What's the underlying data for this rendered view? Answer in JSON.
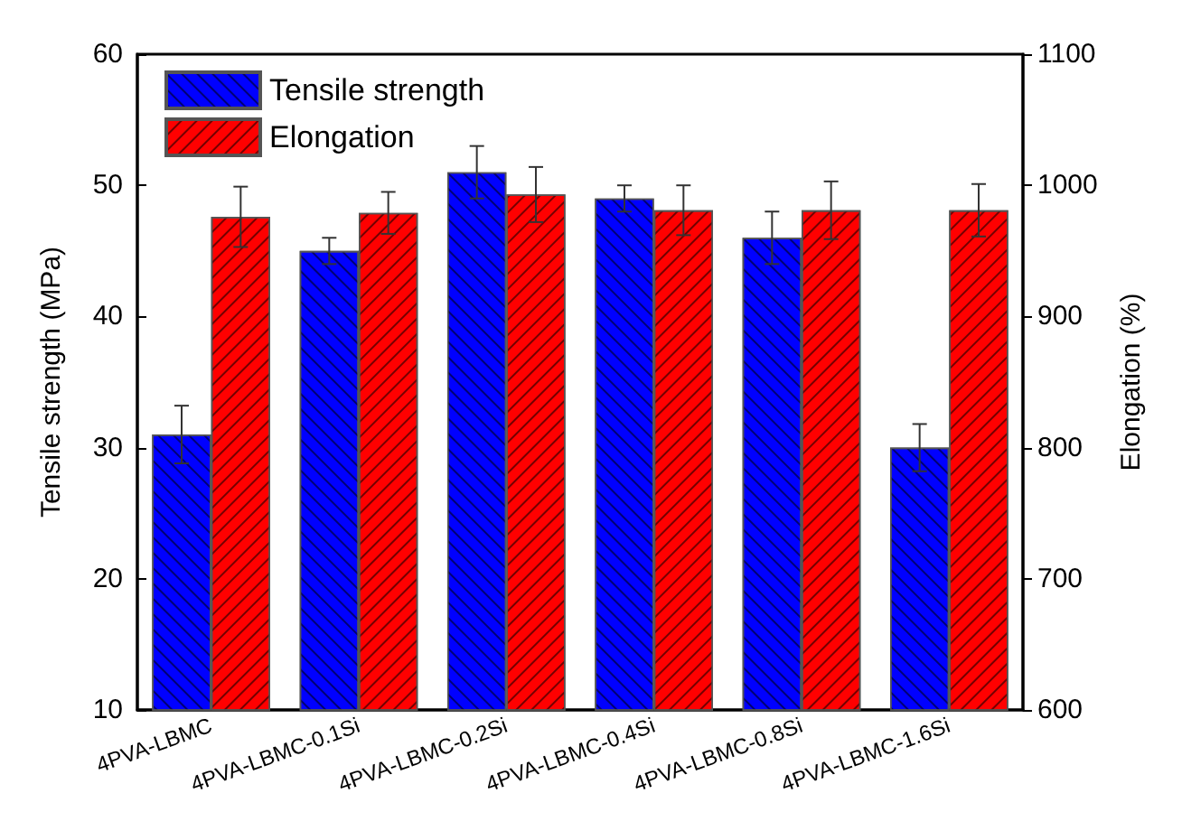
{
  "chart_data": {
    "type": "bar",
    "categories": [
      "4PVA-LBMC",
      "4PVA-LBMC-0.1Si",
      "4PVA-LBMC-0.2Si",
      "4PVA-LBMC-0.4Si",
      "4PVA-LBMC-0.8Si",
      "4PVA-LBMC-1.6Si"
    ],
    "series": [
      {
        "name": "Tensile strength",
        "color": "#0000ff",
        "values": [
          31,
          45,
          51,
          49,
          46,
          30
        ],
        "errors": [
          2.2,
          1,
          2,
          1,
          2,
          1.8
        ]
      },
      {
        "name": "Elongation",
        "color": "#ff0000",
        "axis": "y2",
        "values": [
          976,
          979,
          993,
          981,
          981,
          981
        ],
        "errors": [
          23,
          16,
          21,
          19,
          22,
          20
        ]
      }
    ],
    "ylabel": "Tensile strength (MPa)",
    "y2label": "Elongation (%)",
    "ylim": [
      10,
      60
    ],
    "yticks": [
      10,
      20,
      30,
      40,
      50,
      60
    ],
    "y2lim": [
      600,
      1100
    ],
    "y2ticks": [
      600,
      700,
      800,
      900,
      1000,
      1100
    ],
    "legend": "top left",
    "grid": false
  }
}
